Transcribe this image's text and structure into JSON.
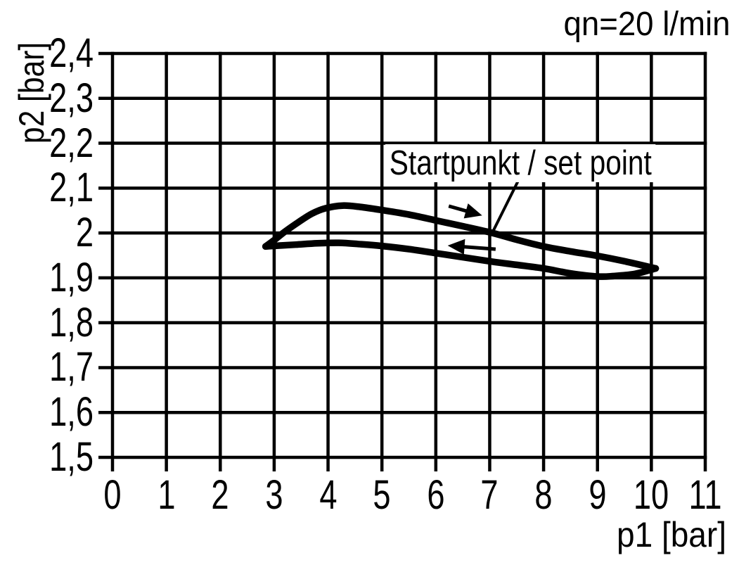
{
  "chart_data": {
    "type": "line",
    "title": "",
    "condition_label": "qn=20 l/min",
    "xlabel": "p1 [bar]",
    "ylabel": "p2 [bar]",
    "xlim": [
      0,
      11
    ],
    "ylim": [
      1.5,
      2.4
    ],
    "grid": true,
    "xticks": [
      0,
      1,
      2,
      3,
      4,
      5,
      6,
      7,
      8,
      9,
      10,
      11
    ],
    "xtick_labels": [
      "0",
      "1",
      "2",
      "3",
      "4",
      "5",
      "6",
      "7",
      "8",
      "9",
      "10",
      "11"
    ],
    "yticks": [
      2.4,
      2.3,
      2.2,
      2.1,
      2.0,
      1.9,
      1.8,
      1.7,
      1.6,
      1.5
    ],
    "ytick_labels": [
      "2,4",
      "2,3",
      "2,2",
      "2,1",
      "2",
      "1,9",
      "1,8",
      "1,7",
      "1,6",
      "1,5"
    ],
    "series": [
      {
        "name": "upper-branch-p1-increasing",
        "points": [
          [
            2.84,
            1.97
          ],
          [
            3.0,
            1.984
          ],
          [
            3.2,
            2.003
          ],
          [
            3.45,
            2.024
          ],
          [
            3.7,
            2.043
          ],
          [
            3.95,
            2.055
          ],
          [
            4.27,
            2.061
          ],
          [
            4.6,
            2.058
          ],
          [
            5.0,
            2.051
          ],
          [
            5.5,
            2.041
          ],
          [
            6.0,
            2.028
          ],
          [
            6.5,
            2.015
          ],
          [
            7.05,
            2.0
          ],
          [
            7.5,
            1.985
          ],
          [
            8.0,
            1.97
          ],
          [
            8.5,
            1.959
          ],
          [
            9.0,
            1.949
          ],
          [
            9.5,
            1.937
          ],
          [
            10.08,
            1.921
          ]
        ]
      },
      {
        "name": "lower-branch-p1-decreasing",
        "points": [
          [
            10.08,
            1.921
          ],
          [
            9.7,
            1.909
          ],
          [
            9.3,
            1.904
          ],
          [
            9.0,
            1.903
          ],
          [
            8.5,
            1.91
          ],
          [
            8.0,
            1.921
          ],
          [
            7.5,
            1.929
          ],
          [
            7.05,
            1.936
          ],
          [
            6.5,
            1.946
          ],
          [
            6.0,
            1.955
          ],
          [
            5.5,
            1.964
          ],
          [
            5.0,
            1.971
          ],
          [
            4.6,
            1.975
          ],
          [
            4.2,
            1.978
          ],
          [
            3.8,
            1.977
          ],
          [
            3.4,
            1.974
          ],
          [
            3.1,
            1.972
          ],
          [
            2.84,
            1.97
          ]
        ]
      }
    ],
    "annotations": {
      "set_point": {
        "label": "Startpunkt / set point",
        "leader_from": [
          7.54,
          2.119
        ],
        "leader_to": [
          7.05,
          2.001
        ]
      },
      "arrow_right": {
        "direction": "right",
        "from": [
          6.24,
          2.06
        ],
        "to": [
          6.86,
          2.039
        ]
      },
      "arrow_left": {
        "direction": "left",
        "from": [
          7.11,
          1.964
        ],
        "to": [
          6.22,
          1.972
        ]
      }
    },
    "colors": {
      "foreground": "#000000",
      "background": "#ffffff"
    }
  }
}
